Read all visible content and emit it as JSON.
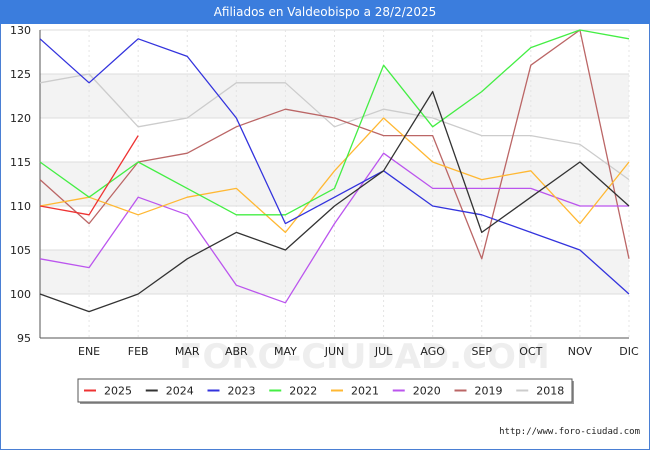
{
  "title": "Afiliados en Valdeobispo a 28/2/2025",
  "source": "http://www.foro-ciudad.com",
  "watermark": "FORO-CIUDAD.COM",
  "chart_data": {
    "type": "line",
    "title": "Afiliados en Valdeobispo a 28/2/2025",
    "xlabel": "",
    "ylabel": "",
    "categories": [
      "",
      "ENE",
      "FEB",
      "MAR",
      "ABR",
      "MAY",
      "JUN",
      "JUL",
      "AGO",
      "SEP",
      "OCT",
      "NOV",
      "DIC"
    ],
    "ylim": [
      95,
      130
    ],
    "yticks": [
      95,
      100,
      105,
      110,
      115,
      120,
      125,
      130
    ],
    "grid": true,
    "legend_position": "bottom",
    "series": [
      {
        "name": "2025",
        "color": "#ee3333",
        "values": [
          110,
          109,
          118,
          null,
          null,
          null,
          null,
          null,
          null,
          null,
          null,
          null,
          null
        ]
      },
      {
        "name": "2024",
        "color": "#333333",
        "values": [
          100,
          98,
          100,
          104,
          107,
          105,
          110,
          114,
          123,
          107,
          111,
          115,
          110
        ]
      },
      {
        "name": "2023",
        "color": "#3333dd",
        "values": [
          129,
          124,
          129,
          127,
          120,
          108,
          111,
          114,
          110,
          109,
          107,
          105,
          100
        ]
      },
      {
        "name": "2022",
        "color": "#44ee44",
        "values": [
          115,
          111,
          115,
          112,
          109,
          109,
          112,
          126,
          119,
          123,
          128,
          130,
          129
        ]
      },
      {
        "name": "2021",
        "color": "#ffb833",
        "values": [
          110,
          111,
          109,
          111,
          112,
          107,
          114,
          120,
          115,
          113,
          114,
          108,
          115
        ]
      },
      {
        "name": "2020",
        "color": "#bb55ee",
        "values": [
          104,
          103,
          111,
          109,
          101,
          99,
          108,
          116,
          112,
          112,
          112,
          110,
          110
        ]
      },
      {
        "name": "2019",
        "color": "#bb6666",
        "values": [
          113,
          108,
          115,
          116,
          119,
          121,
          120,
          118,
          118,
          104,
          126,
          130,
          104
        ]
      },
      {
        "name": "2018",
        "color": "#cccccc",
        "values": [
          124,
          125,
          119,
          120,
          124,
          124,
          119,
          121,
          120,
          118,
          118,
          117,
          113
        ]
      }
    ]
  }
}
